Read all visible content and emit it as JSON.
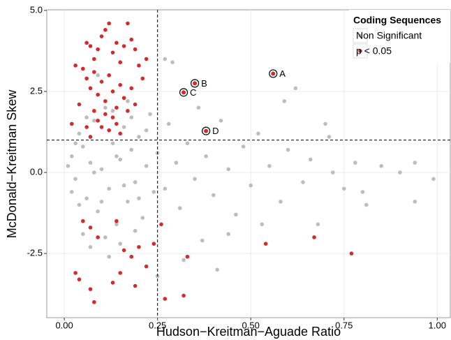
{
  "chart_data": {
    "type": "scatter",
    "xlabel": "Hudson−Kreitman−Aguade Ratio",
    "ylabel": "McDonald−Kreitman Skew",
    "legend_title": "Coding Sequences",
    "legend": "top-right",
    "grid": true,
    "xlim": [
      -0.047,
      1.035
    ],
    "ylim": [
      -4.48,
      5.02
    ],
    "xticks": [
      {
        "value": 0,
        "label": "0.00"
      },
      {
        "value": 0.25,
        "label": "0.25"
      },
      {
        "value": 0.5,
        "label": "0.50"
      },
      {
        "value": 0.75,
        "label": "0.75"
      },
      {
        "value": 1,
        "label": "1.00"
      }
    ],
    "yticks": [
      {
        "value": -2.5,
        "label": "-2.5"
      },
      {
        "value": 0,
        "label": "0.0"
      },
      {
        "value": 2.5,
        "label": "2.5"
      },
      {
        "value": 5,
        "label": "5.0"
      }
    ],
    "reference_lines": {
      "x": 0.25,
      "y": 1.0
    },
    "series": [
      {
        "name": "Non Significant",
        "color": "#bdbdbd",
        "x": [
          0.02,
          0.03,
          0.04,
          0.05,
          0.06,
          0.07,
          0.08,
          0.09,
          0.1,
          0.11,
          0.12,
          0.13,
          0.14,
          0.15,
          0.16,
          0.17,
          0.18,
          0.19,
          0.2,
          0.21,
          0.22,
          0.23,
          0.24,
          0.05,
          0.07,
          0.09,
          0.11,
          0.13,
          0.15,
          0.17,
          0.19,
          0.08,
          0.1,
          0.12,
          0.14,
          0.16,
          0.04,
          0.06,
          0.03,
          0.02,
          0.01,
          0.18,
          0.2,
          0.22,
          0.09,
          0.12,
          0.25,
          0.27,
          0.28,
          0.3,
          0.31,
          0.33,
          0.35,
          0.36,
          0.38,
          0.4,
          0.42,
          0.44,
          0.46,
          0.48,
          0.5,
          0.52,
          0.55,
          0.58,
          0.6,
          0.62,
          0.64,
          0.66,
          0.68,
          0.7,
          0.72,
          0.75,
          0.78,
          0.81,
          0.85,
          0.9,
          0.94,
          0.99,
          0.94,
          0.32,
          0.41,
          0.29,
          0.27,
          0.25,
          0.37,
          0.44,
          0.53,
          0.59,
          0.71,
          0.8
        ],
        "values": [
          0.5,
          -0.2,
          1.2,
          0.8,
          -0.8,
          0.3,
          1.6,
          -1.2,
          0.1,
          2.0,
          -0.5,
          0.9,
          -1.6,
          0.4,
          1.4,
          -0.9,
          0.7,
          -0.3,
          1.1,
          -1.4,
          0.2,
          1.8,
          -0.6,
          -1.9,
          -2.3,
          2.4,
          -2.0,
          1.9,
          -2.2,
          2.2,
          -1.8,
          0.0,
          -0.9,
          1.3,
          0.5,
          -0.4,
          -1.0,
          1.7,
          0.9,
          -0.6,
          0.2,
          1.7,
          -0.8,
          1.3,
          3.0,
          -2.6,
          0.6,
          -0.5,
          1.5,
          0.3,
          -1.1,
          0.9,
          -0.2,
          2.0,
          0.5,
          -0.7,
          1.6,
          0.1,
          -1.3,
          0.8,
          -0.4,
          1.2,
          0.2,
          -0.9,
          0.7,
          2.6,
          -0.3,
          0.4,
          -1.6,
          1.5,
          0.0,
          -0.5,
          0.3,
          -1.0,
          0.2,
          0.0,
          0.3,
          -0.2,
          -0.9,
          -2.7,
          -3.0,
          3.4,
          3.5,
          -3.2,
          -2.1,
          -1.9,
          -1.6,
          2.2,
          1.1,
          -0.6
        ]
      },
      {
        "name": "p < 0.05",
        "color": "#d42a2a",
        "x": [
          0.06,
          0.07,
          0.08,
          0.09,
          0.1,
          0.11,
          0.12,
          0.13,
          0.14,
          0.15,
          0.16,
          0.17,
          0.18,
          0.19,
          0.2,
          0.22,
          0.05,
          0.06,
          0.07,
          0.08,
          0.09,
          0.1,
          0.11,
          0.12,
          0.13,
          0.14,
          0.15,
          0.16,
          0.17,
          0.18,
          0.08,
          0.09,
          0.1,
          0.11,
          0.12,
          0.13,
          0.14,
          0.06,
          0.07,
          0.15,
          0.03,
          0.04,
          0.02,
          0.21,
          0.19,
          0.05,
          0.07,
          0.09,
          0.14,
          0.16,
          0.18,
          0.2,
          0.22,
          0.03,
          0.04,
          0.07,
          0.08,
          0.13,
          0.15,
          0.19,
          0.24,
          0.26,
          0.27,
          0.32,
          0.33,
          0.54,
          0.67,
          0.77
        ],
        "values": [
          4.0,
          3.9,
          3.5,
          3.8,
          4.2,
          4.4,
          4.6,
          3.7,
          4.0,
          3.4,
          3.9,
          4.6,
          4.1,
          3.8,
          3.3,
          3.5,
          3.2,
          2.9,
          2.6,
          3.1,
          2.4,
          2.8,
          2.2,
          3.0,
          2.5,
          2.0,
          2.7,
          2.3,
          1.9,
          2.6,
          1.9,
          1.6,
          1.4,
          1.8,
          1.3,
          1.7,
          1.5,
          1.4,
          1.1,
          1.2,
          3.3,
          2.1,
          1.5,
          2.9,
          2.1,
          -1.5,
          -1.7,
          -2.0,
          -1.5,
          -2.4,
          -2.6,
          -2.3,
          -2.9,
          -3.1,
          -3.3,
          -3.6,
          -4.0,
          -3.4,
          -3.1,
          -3.5,
          -2.2,
          -1.6,
          -3.9,
          -3.8,
          -2.6,
          -2.2,
          -2.0,
          -2.5
        ]
      }
    ],
    "annotations": [
      {
        "label": "A",
        "x": 0.56,
        "y": 3.05
      },
      {
        "label": "B",
        "x": 0.35,
        "y": 2.75
      },
      {
        "label": "C",
        "x": 0.32,
        "y": 2.47
      },
      {
        "label": "D",
        "x": 0.38,
        "y": 1.28
      }
    ]
  }
}
